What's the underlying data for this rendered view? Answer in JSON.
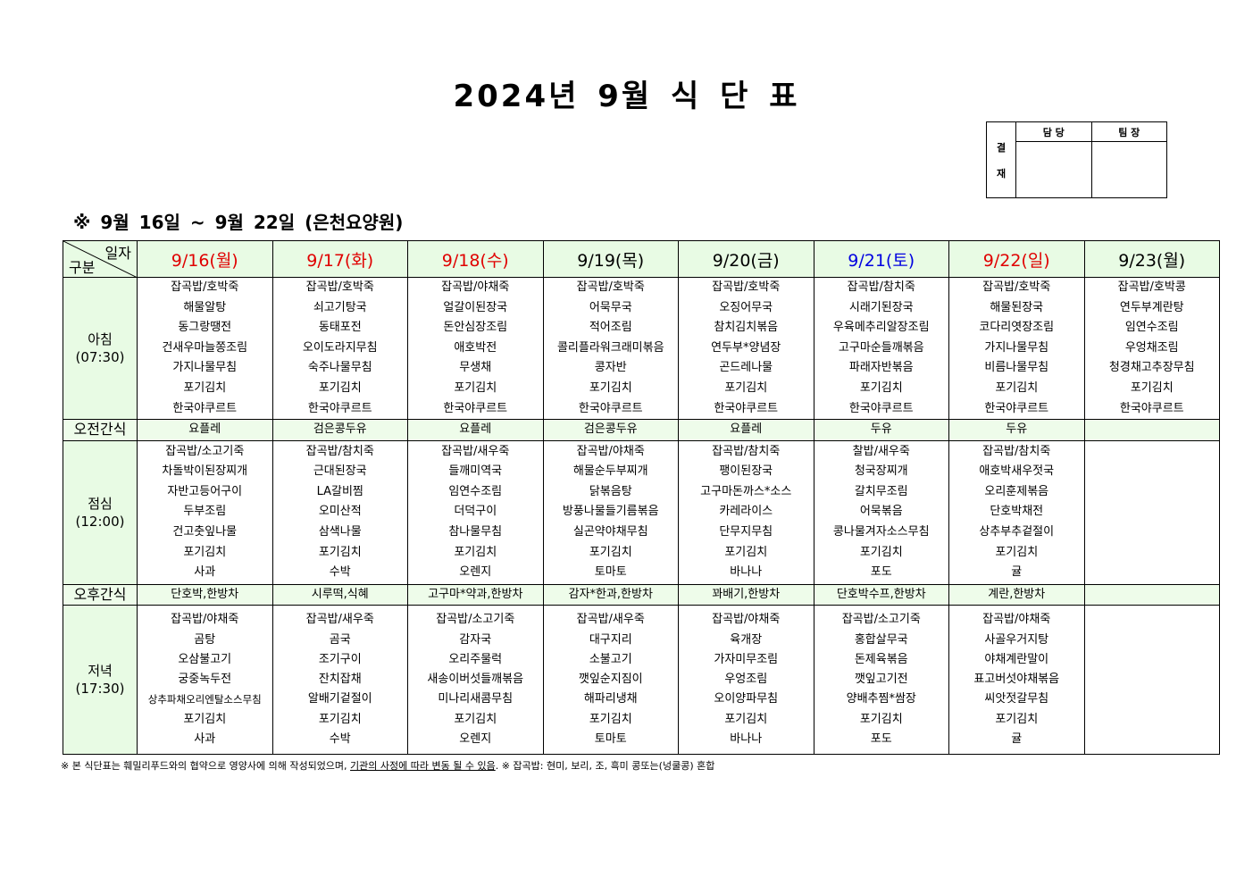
{
  "title": "2024년 9월 식 단 표",
  "approval": {
    "label": [
      "결",
      "재"
    ],
    "cols": [
      "담 당",
      "팀 장"
    ]
  },
  "subtitle": "※ 9월 16일 ~ 9월 22일 (은천요양원)",
  "corner": {
    "top": "일자",
    "bottom": "구분"
  },
  "days": [
    {
      "label": "9/16(월)",
      "color": "#e00000"
    },
    {
      "label": "9/17(화)",
      "color": "#e00000"
    },
    {
      "label": "9/18(수)",
      "color": "#e00000"
    },
    {
      "label": "9/19(목)",
      "color": "#000000"
    },
    {
      "label": "9/20(금)",
      "color": "#000000"
    },
    {
      "label": "9/21(토)",
      "color": "#0000e0"
    },
    {
      "label": "9/22(일)",
      "color": "#e00000"
    },
    {
      "label": "9/23(월)",
      "color": "#000000"
    }
  ],
  "rows": [
    {
      "label": [
        "아침",
        "(07:30)"
      ],
      "type": "meal",
      "cells": [
        [
          "잡곡밥/호박죽",
          "해물알탕",
          "동그랑땡전",
          "건새우마늘쫑조림",
          "가지나물무침",
          "포기김치",
          "한국야쿠르트"
        ],
        [
          "잡곡밥/호박죽",
          "쇠고기탕국",
          "동태포전",
          "오이도라지무침",
          "숙주나물무침",
          "포기김치",
          "한국야쿠르트"
        ],
        [
          "잡곡밥/야채죽",
          "얼갈이된장국",
          "돈안심장조림",
          "애호박전",
          "무생채",
          "포기김치",
          "한국야쿠르트"
        ],
        [
          "잡곡밥/호박죽",
          "어묵무국",
          "적어조림",
          "콜리플라워크래미볶음",
          "콩자반",
          "포기김치",
          "한국야쿠르트"
        ],
        [
          "잡곡밥/호박죽",
          "오징어무국",
          "참치김치볶음",
          "연두부*양념장",
          "곤드레나물",
          "포기김치",
          "한국야쿠르트"
        ],
        [
          "잡곡밥/참치죽",
          "시래기된장국",
          "우육메추리알장조림",
          "고구마순들깨볶음",
          "파래자반볶음",
          "포기김치",
          "한국야쿠르트"
        ],
        [
          "잡곡밥/호박죽",
          "해물된장국",
          "코다리엿장조림",
          "가지나물무침",
          "비름나물무침",
          "포기김치",
          "한국야쿠르트"
        ],
        [
          "잡곡밥/호박콩",
          "연두부계란탕",
          "임연수조림",
          "우엉채조림",
          "청경채고추장무침",
          "포기김치",
          "한국야쿠르트"
        ]
      ]
    },
    {
      "label": [
        "오전간식"
      ],
      "type": "snack",
      "cells": [
        [
          "요플레"
        ],
        [
          "검은콩두유"
        ],
        [
          "요플레"
        ],
        [
          "검은콩두유"
        ],
        [
          "요플레"
        ],
        [
          "두유"
        ],
        [
          "두유"
        ],
        []
      ]
    },
    {
      "label": [
        "점심",
        "(12:00)"
      ],
      "type": "meal",
      "cells": [
        [
          "잡곡밥/소고기죽",
          "차돌박이된장찌개",
          "자반고등어구이",
          "두부조림",
          "건고춧잎나물",
          "포기김치",
          "사과"
        ],
        [
          "잡곡밥/참치죽",
          "근대된장국",
          "LA갈비찜",
          "오미산적",
          "삼색나물",
          "포기김치",
          "수박"
        ],
        [
          "잡곡밥/새우죽",
          "들깨미역국",
          "임연수조림",
          "더덕구이",
          "참나물무침",
          "포기김치",
          "오렌지"
        ],
        [
          "잡곡밥/야채죽",
          "해물순두부찌개",
          "닭볶음탕",
          "방풍나물들기름볶음",
          "실곤약야채무침",
          "포기김치",
          "토마토"
        ],
        [
          "잡곡밥/참치죽",
          "팽이된장국",
          "고구마돈까스*소스",
          "카레라이스",
          "단무지무침",
          "포기김치",
          "바나나"
        ],
        [
          "찰밥/새우죽",
          "청국장찌개",
          "갈치무조림",
          "어묵볶음",
          "콩나물겨자소스무침",
          "포기김치",
          "포도"
        ],
        [
          "잡곡밥/참치죽",
          "애호박새우젓국",
          "오리훈제볶음",
          "단호박채전",
          "상추부추겉절이",
          "포기김치",
          "귤"
        ],
        []
      ]
    },
    {
      "label": [
        "오후간식"
      ],
      "type": "snack",
      "cells": [
        [
          "단호박,한방차"
        ],
        [
          "시루떡,식혜"
        ],
        [
          "고구마*약과,한방차"
        ],
        [
          "감자*한과,한방차"
        ],
        [
          "꽈배기,한방차"
        ],
        [
          "단호박수프,한방차"
        ],
        [
          "계란,한방차"
        ],
        []
      ]
    },
    {
      "label": [
        "저녁",
        "(17:30)"
      ],
      "type": "meal",
      "cells": [
        [
          "잡곡밥/야채죽",
          "곰탕",
          "오삼불고기",
          "궁중녹두전",
          "상추파채오리엔탈소스무침",
          "포기김치",
          "사과"
        ],
        [
          "잡곡밥/새우죽",
          "곰국",
          "조기구이",
          "잔치잡채",
          "알배기겉절이",
          "포기김치",
          "수박"
        ],
        [
          "잡곡밥/소고기죽",
          "감자국",
          "오리주물럭",
          "새송이버섯들깨볶음",
          "미나리새콤무침",
          "포기김치",
          "오렌지"
        ],
        [
          "잡곡밥/새우죽",
          "대구지리",
          "소불고기",
          "깻잎순지짐이",
          "해파리냉채",
          "포기김치",
          "토마토"
        ],
        [
          "잡곡밥/야채죽",
          "육개장",
          "가자미무조림",
          "우엉조림",
          "오이양파무침",
          "포기김치",
          "바나나"
        ],
        [
          "잡곡밥/소고기죽",
          "홍합살무국",
          "돈제육볶음",
          "깻잎고기전",
          "양배추찜*쌈장",
          "포기김치",
          "포도"
        ],
        [
          "잡곡밥/야채죽",
          "사골우거지탕",
          "야채계란말이",
          "표고버섯야채볶음",
          "씨앗젓갈무침",
          "포기김치",
          "귤"
        ],
        []
      ]
    }
  ],
  "note": {
    "pre": "※ 본 식단표는 훼밀리푸드와의 협약으로 영양사에 의해 작성되었으며, ",
    "underlined": "기관의 사정에 따라 변동 될 수 있음",
    "post": ". ※ 잡곡밥: 현미, 보리, 조, 흑미 콩또는(넝쿨콩) 혼합"
  }
}
